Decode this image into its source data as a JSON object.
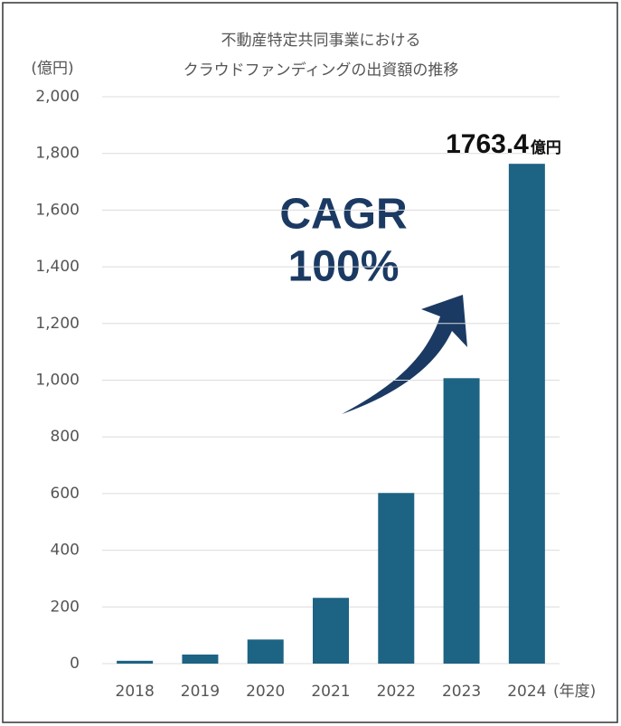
{
  "chart_data": {
    "type": "bar",
    "title": [
      "不動産特定共同事業における",
      "クラウドファンディングの出資額の推移"
    ],
    "y_unit": "(億円)",
    "x_unit": "(年度)",
    "categories": [
      "2018",
      "2019",
      "2020",
      "2021",
      "2022",
      "2023",
      "2024"
    ],
    "values": [
      10,
      32,
      85,
      232,
      602,
      1007,
      1763.4
    ],
    "value_labels": [
      null,
      null,
      null,
      null,
      null,
      null,
      "1763.4"
    ],
    "value_label_unit": "億円",
    "annotation": [
      "CAGR",
      "100%"
    ],
    "color": "#1d6384",
    "ylim": [
      0,
      2000
    ],
    "yticks": [
      0,
      200,
      400,
      600,
      800,
      {
        "value": 1000,
        "label": "1,000"
      },
      {
        "value": 1200,
        "label": "1,200"
      },
      {
        "value": 1400,
        "label": "1,400"
      },
      {
        "value": 1600,
        "label": "1,600"
      },
      {
        "value": 1800,
        "label": "1,800"
      },
      {
        "value": 2000,
        "label": "2,000"
      }
    ],
    "grid": true
  }
}
